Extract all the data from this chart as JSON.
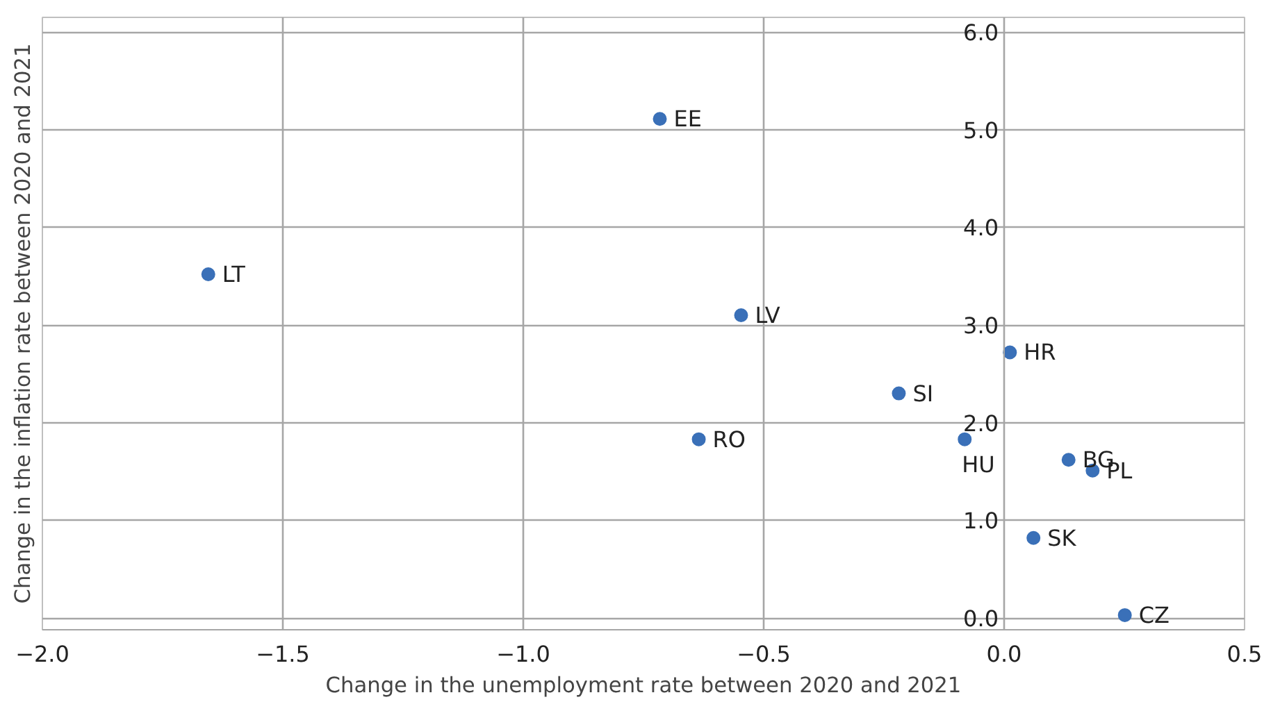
{
  "chart_data": {
    "type": "scatter",
    "xlabel": "Change in the unemployment rate between 2020 and 2021",
    "ylabel": "Change in the inflation rate between 2020 and 2021",
    "x": [
      -1.655,
      -0.716,
      -0.547,
      -0.635,
      -0.219,
      -0.082,
      0.012,
      0.134,
      0.184,
      0.061,
      0.251
    ],
    "series": [
      {
        "color": "#3a70b8",
        "values": [
          3.52,
          5.11,
          3.1,
          1.83,
          2.3,
          1.83,
          2.72,
          1.62,
          1.51,
          0.82,
          0.03
        ]
      }
    ],
    "annotations": [
      {
        "text": "LT",
        "x": -1.655,
        "y": 3.52
      },
      {
        "text": "EE",
        "x": -0.716,
        "y": 5.11
      },
      {
        "text": "LV",
        "x": -0.547,
        "y": 3.1
      },
      {
        "text": "RO",
        "x": -0.635,
        "y": 1.83
      },
      {
        "text": "SI",
        "x": -0.219,
        "y": 2.3
      },
      {
        "text": "HU",
        "x": -0.082,
        "y": 1.83
      },
      {
        "text": "HR",
        "x": 0.012,
        "y": 2.72
      },
      {
        "text": "BG",
        "x": 0.134,
        "y": 1.62
      },
      {
        "text": "PL",
        "x": 0.184,
        "y": 1.51
      },
      {
        "text": "SK",
        "x": 0.061,
        "y": 0.82
      },
      {
        "text": "CZ",
        "x": 0.251,
        "y": 0.03
      }
    ],
    "xlim": [
      -2.0,
      0.5
    ],
    "ylim": [
      -0.12,
      6.15
    ],
    "xticks": [
      {
        "value": -2.0,
        "label": "−2.0"
      },
      {
        "value": -1.5,
        "label": "−1.5"
      },
      {
        "value": -1.0,
        "label": "−1.0"
      },
      {
        "value": -0.5,
        "label": "−0.5"
      },
      {
        "value": 0.0,
        "label": "0.0"
      },
      {
        "value": 0.5,
        "label": "0.5"
      }
    ],
    "yticks": [
      {
        "value": 0.0,
        "label": "0.0"
      },
      {
        "value": 1.0,
        "label": "1.0"
      },
      {
        "value": 2.0,
        "label": "2.0"
      },
      {
        "value": 3.0,
        "label": "3.0"
      },
      {
        "value": 4.0,
        "label": "4.0"
      },
      {
        "value": 5.0,
        "label": "5.0"
      },
      {
        "value": 6.0,
        "label": "6.0"
      }
    ],
    "grid": true,
    "marker": "circle"
  }
}
